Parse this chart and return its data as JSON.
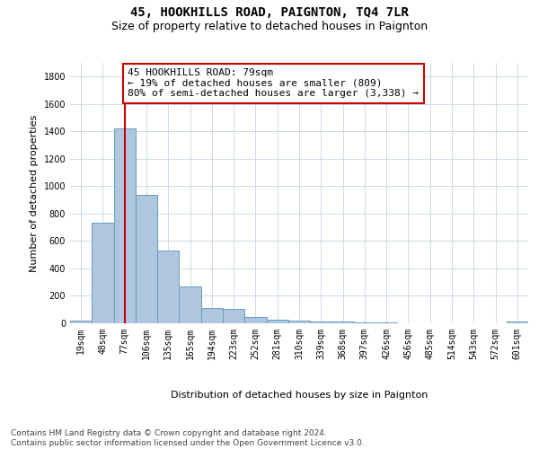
{
  "title": "45, HOOKHILLS ROAD, PAIGNTON, TQ4 7LR",
  "subtitle": "Size of property relative to detached houses in Paignton",
  "xlabel": "Distribution of detached houses by size in Paignton",
  "ylabel": "Number of detached properties",
  "categories": [
    "19sqm",
    "48sqm",
    "77sqm",
    "106sqm",
    "135sqm",
    "165sqm",
    "194sqm",
    "223sqm",
    "252sqm",
    "281sqm",
    "310sqm",
    "339sqm",
    "368sqm",
    "397sqm",
    "426sqm",
    "456sqm",
    "485sqm",
    "514sqm",
    "543sqm",
    "572sqm",
    "601sqm"
  ],
  "values": [
    18,
    735,
    1420,
    935,
    530,
    270,
    110,
    105,
    48,
    28,
    20,
    13,
    10,
    8,
    5,
    3,
    2,
    0,
    0,
    0,
    10
  ],
  "bar_color": "#aec6de",
  "bar_edge_color": "#6a9dbf",
  "vline_x": 2,
  "vline_color": "#cc0000",
  "annotation_text": "45 HOOKHILLS ROAD: 79sqm\n← 19% of detached houses are smaller (809)\n80% of semi-detached houses are larger (3,338) →",
  "annotation_box_color": "#ffffff",
  "annotation_box_edge": "#cc0000",
  "ylim": [
    0,
    1900
  ],
  "yticks": [
    0,
    200,
    400,
    600,
    800,
    1000,
    1200,
    1400,
    1600,
    1800
  ],
  "bg_color": "#ffffff",
  "grid_color": "#ccd9e8",
  "footer": "Contains HM Land Registry data © Crown copyright and database right 2024.\nContains public sector information licensed under the Open Government Licence v3.0.",
  "title_fontsize": 10,
  "subtitle_fontsize": 9,
  "axis_label_fontsize": 8,
  "tick_fontsize": 7,
  "annotation_fontsize": 8,
  "footer_fontsize": 6.5
}
